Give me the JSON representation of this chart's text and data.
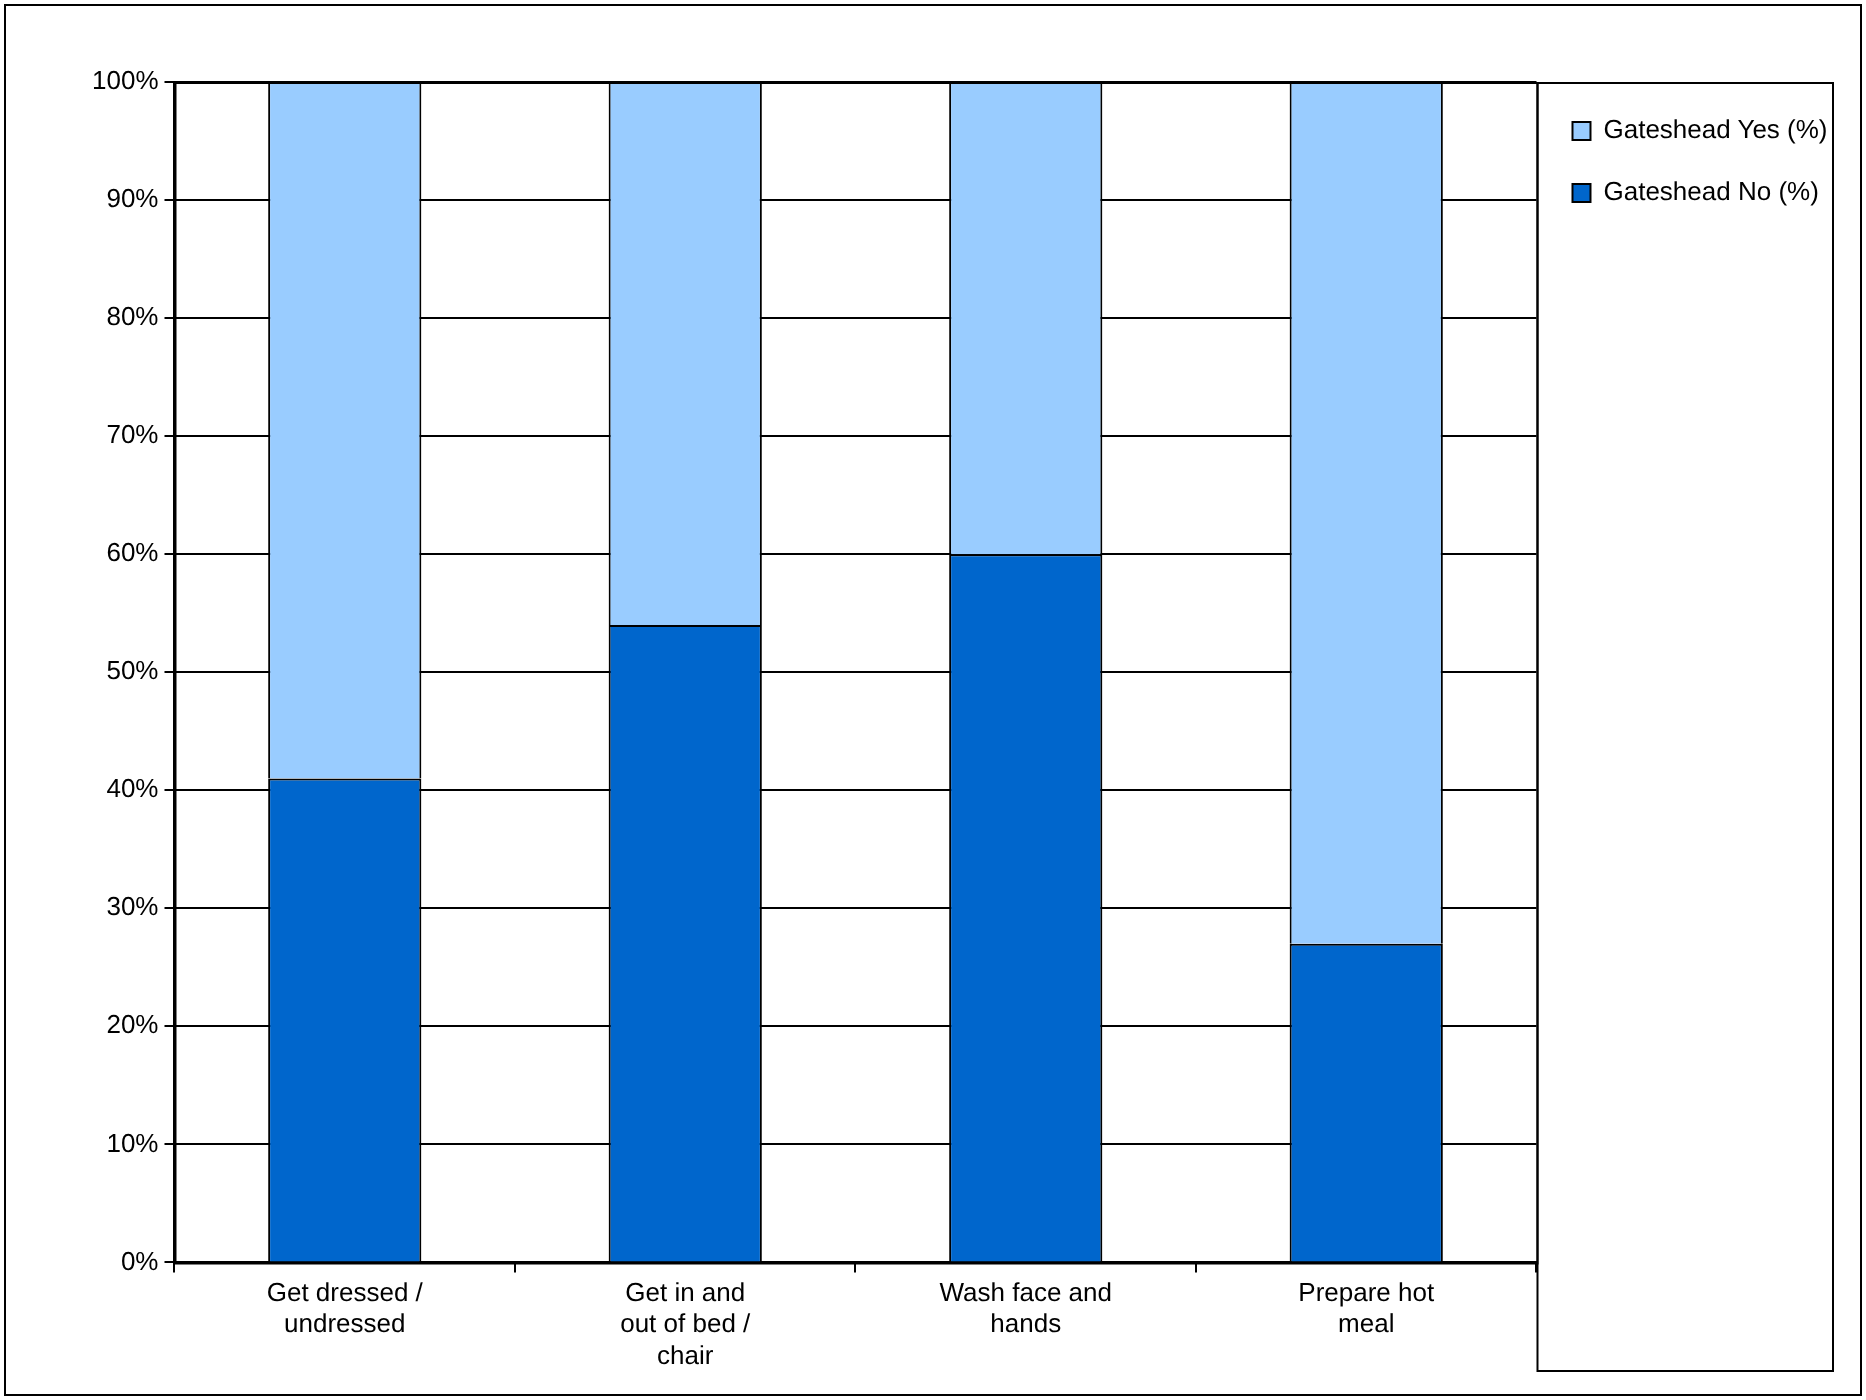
{
  "chart_data": {
    "type": "bar",
    "stacked": true,
    "categories": [
      "Get dressed / undressed",
      "Get in and out of bed / chair",
      "Wash face and hands",
      "Prepare hot meal"
    ],
    "series": [
      {
        "name": "Gateshead No (%)",
        "color": "#0066cc",
        "values": [
          41,
          54,
          60,
          27
        ]
      },
      {
        "name": "Gateshead Yes (%)",
        "color": "#99ccff",
        "values": [
          59,
          46,
          40,
          73
        ]
      }
    ],
    "ylim": [
      0,
      100
    ],
    "yticks": [
      {
        "value": 0,
        "label": "0%"
      },
      {
        "value": 10,
        "label": "10%"
      },
      {
        "value": 20,
        "label": "20%"
      },
      {
        "value": 30,
        "label": "30%"
      },
      {
        "value": 40,
        "label": "40%"
      },
      {
        "value": 50,
        "label": "50%"
      },
      {
        "value": 60,
        "label": "60%"
      },
      {
        "value": 70,
        "label": "70%"
      },
      {
        "value": 80,
        "label": "80%"
      },
      {
        "value": 90,
        "label": "90%"
      },
      {
        "value": 100,
        "label": "100%"
      }
    ],
    "grid": "y",
    "legend": "top right"
  }
}
